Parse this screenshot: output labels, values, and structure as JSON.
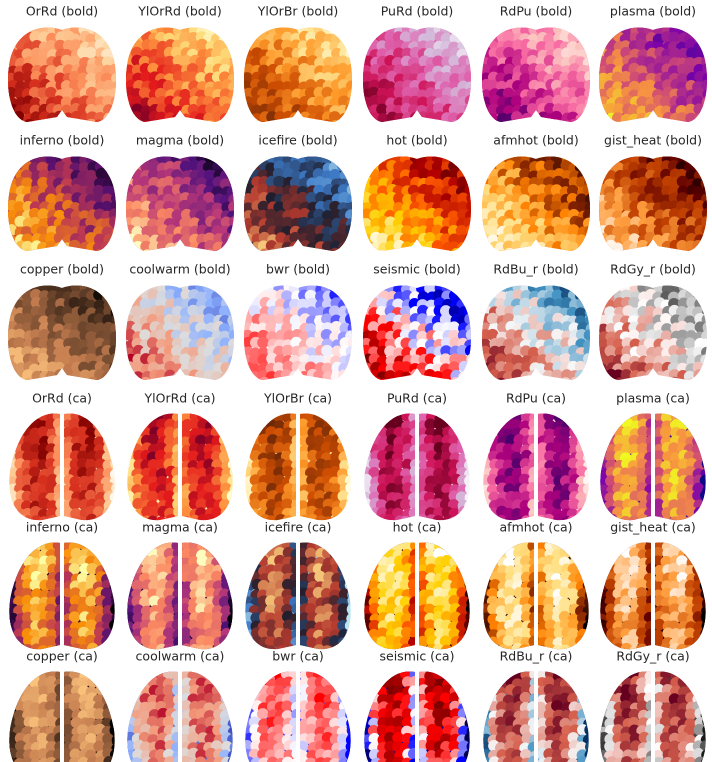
{
  "panels": [
    "OrRd (bold)",
    "YlOrRd (bold)",
    "YlOrBr (bold)",
    "PuRd (bold)",
    "RdPu (bold)",
    "plasma (bold)",
    "inferno (bold)",
    "magma (bold)",
    "icefire (bold)",
    "hot (bold)",
    "afmhot (bold)",
    "gist_heat (bold)",
    "copper (bold)",
    "coolwarm (bold)",
    "bwr (bold)",
    "seismic (bold)",
    "RdBu_r (bold)",
    "RdGy_r (bold)",
    "OrRd (ca)",
    "YlOrRd (ca)",
    "YlOrBr (ca)",
    "PuRd (ca)",
    "RdPu (ca)",
    "plasma (ca)",
    "inferno (ca)",
    "magma (ca)",
    "icefire (ca)",
    "hot (ca)",
    "afmhot (ca)",
    "gist_heat (ca)",
    "copper (ca)",
    "coolwarm (ca)",
    "bwr (ca)",
    "seismic (ca)",
    "RdBu_r (ca)",
    "RdGy_r (ca)"
  ]
}
